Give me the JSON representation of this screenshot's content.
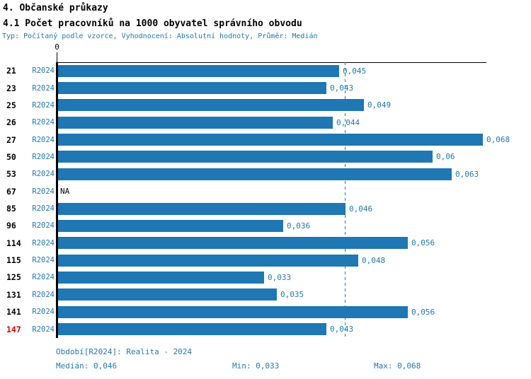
{
  "header": {
    "title1": "4. Občanské průkazy",
    "title2": "4.1 Počet pracovníků na 1000 obyvatel správního obvodu",
    "subtitle": "Typ: Počítaný podle vzorce, Vyhodnocení: Absolutní hodnoty, Průměr: Medián"
  },
  "chart_data": {
    "type": "bar",
    "orientation": "horizontal",
    "title": "4.1 Počet pracovníků na 1000 obyvatel správního obvodu",
    "categories": [
      "21",
      "23",
      "25",
      "26",
      "27",
      "50",
      "53",
      "67",
      "85",
      "96",
      "114",
      "115",
      "125",
      "131",
      "141",
      "147"
    ],
    "series": [
      {
        "name": "R2024",
        "values": [
          0.045,
          0.043,
          0.049,
          0.044,
          0.068,
          0.06,
          0.063,
          null,
          0.046,
          0.036,
          0.056,
          0.048,
          0.033,
          0.035,
          0.056,
          0.043
        ],
        "value_labels": [
          "0,045",
          "0,043",
          "0,049",
          "0,044",
          "0,068",
          "0,06",
          "0,063",
          "NA",
          "0,046",
          "0,036",
          "0,056",
          "0,048",
          "0,033",
          "0,035",
          "0,056",
          "0,043"
        ]
      }
    ],
    "series_tag": "R2024",
    "na_label": "NA",
    "highlighted_category": "147",
    "axis_zero_label": "0",
    "xlim": [
      0,
      0.068
    ],
    "median_line": 0.046,
    "legend_position": "none",
    "grid": false,
    "bar_color": "#1f77b4",
    "highlight_color": "#d40000",
    "median": 0.046,
    "min": 0.033,
    "max": 0.068
  },
  "footer": {
    "period": "Období[R2024]: Realita - 2024",
    "median": "Medián: 0,046",
    "min": "Min: 0,033",
    "max": "Max: 0,068"
  }
}
